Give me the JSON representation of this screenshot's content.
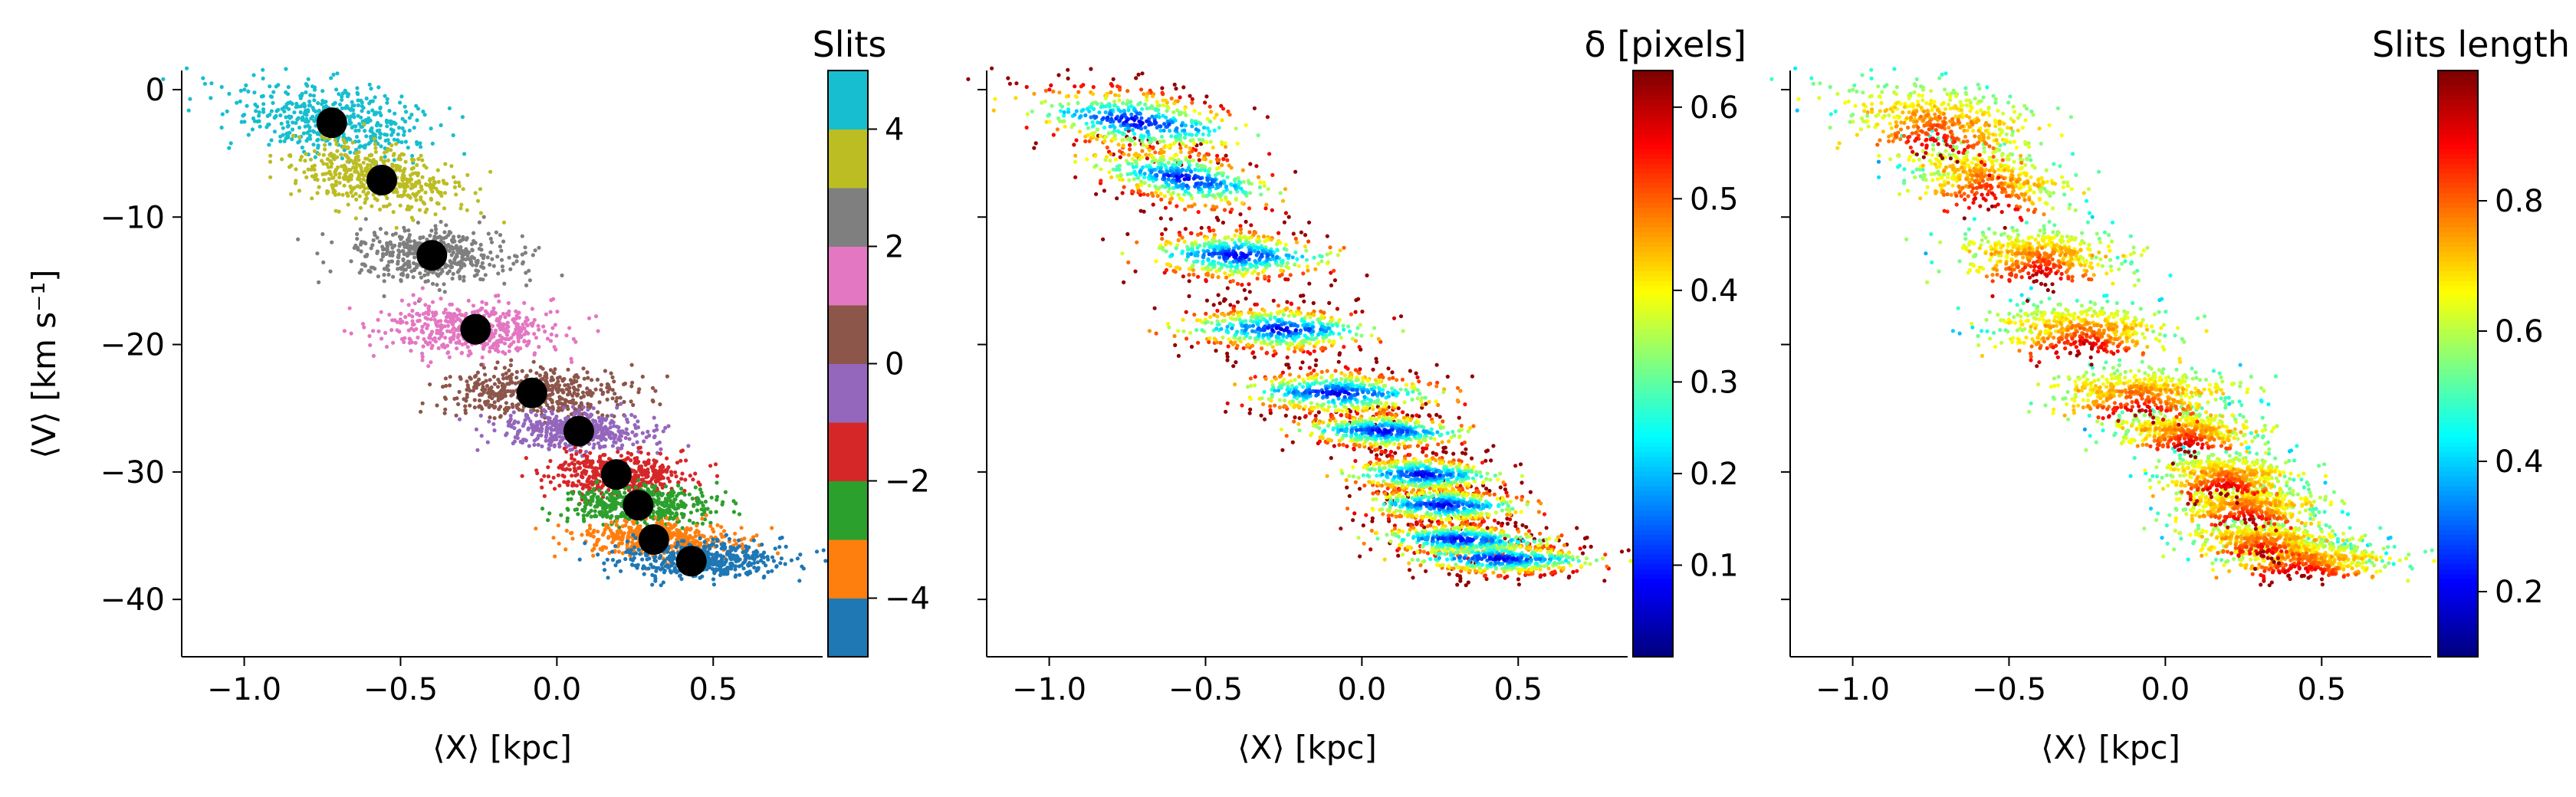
{
  "chart_data": [
    {
      "type": "scatter",
      "title": "",
      "xlabel": "⟨X⟩ [kpc]",
      "ylabel": "⟨V⟩ [km s⁻¹]",
      "xlim": [
        -1.2,
        0.85
      ],
      "ylim": [
        -44.5,
        1.5
      ],
      "x_ticks": [
        -1.0,
        -0.5,
        0.0,
        0.5
      ],
      "x_tick_labels": [
        "−1.0",
        "−0.5",
        "0.0",
        "0.5"
      ],
      "y_ticks": [
        0,
        -10,
        -20,
        -30,
        -40
      ],
      "y_tick_labels": [
        "0",
        "−10",
        "−20",
        "−30",
        "−40"
      ],
      "colorbar": {
        "label": "Slits",
        "type": "discrete",
        "range": [
          -5,
          5
        ],
        "ticks": [
          4,
          2,
          0,
          -2,
          -4
        ],
        "tick_labels": [
          "4",
          "2",
          "0",
          "−2",
          "−4"
        ],
        "colors": [
          "#1f77b4",
          "#ff7f0e",
          "#2ca02c",
          "#d62728",
          "#9467bd",
          "#8c564b",
          "#e377c2",
          "#7f7f7f",
          "#bcbd22",
          "#17becf"
        ]
      },
      "series": [
        {
          "slit": 4,
          "mean": [
            -0.72,
            -2.6
          ],
          "x_range": [
            -1.1,
            -0.35
          ],
          "center_v": -2.5,
          "v_width": 3.5,
          "tilt": 3.0
        },
        {
          "slit": 3,
          "mean": [
            -0.56,
            -7.1
          ],
          "x_range": [
            -0.85,
            -0.3
          ],
          "center_v": -7.0,
          "v_width": 3.2,
          "tilt": 4.0
        },
        {
          "slit": 2,
          "mean": [
            -0.4,
            -13.0
          ],
          "x_range": [
            -0.7,
            -0.1
          ],
          "center_v": -13.0,
          "v_width": 2.8,
          "tilt": 0.5
        },
        {
          "slit": 1,
          "mean": [
            -0.26,
            -18.8
          ],
          "x_range": [
            -0.6,
            0.05
          ],
          "center_v": -18.8,
          "v_width": 2.5,
          "tilt": 0.5
        },
        {
          "slit": 0,
          "mean": [
            -0.08,
            -23.8
          ],
          "x_range": [
            -0.4,
            0.25
          ],
          "center_v": -23.8,
          "v_width": 2.5,
          "tilt": 0.5
        },
        {
          "slit": -1,
          "mean": [
            0.07,
            -26.8
          ],
          "x_range": [
            -0.2,
            0.32
          ],
          "center_v": -26.8,
          "v_width": 2.0,
          "tilt": 0.5
        },
        {
          "slit": -2,
          "mean": [
            0.19,
            -30.2
          ],
          "x_range": [
            -0.05,
            0.45
          ],
          "center_v": -30.2,
          "v_width": 2.0,
          "tilt": 0.5
        },
        {
          "slit": -3,
          "mean": [
            0.26,
            -32.6
          ],
          "x_range": [
            0.0,
            0.52
          ],
          "center_v": -32.6,
          "v_width": 2.0,
          "tilt": 0.5
        },
        {
          "slit": -4,
          "mean": [
            0.31,
            -35.3
          ],
          "x_range": [
            0.05,
            0.6
          ],
          "center_v": -35.3,
          "v_width": 1.8,
          "tilt": 0.5
        },
        {
          "slit": -5,
          "mean": [
            0.43,
            -37.0
          ],
          "x_range": [
            0.15,
            0.78
          ],
          "center_v": -36.8,
          "v_width": 1.8,
          "tilt": 0.5
        }
      ]
    },
    {
      "type": "scatter",
      "title": "",
      "xlabel": "⟨X⟩ [kpc]",
      "xlim": [
        -1.2,
        0.85
      ],
      "ylim": [
        -44.5,
        1.5
      ],
      "x_ticks": [
        -1.0,
        -0.5,
        0.0,
        0.5
      ],
      "x_tick_labels": [
        "−1.0",
        "−0.5",
        "0.0",
        "0.5"
      ],
      "y_ticks": [
        0,
        -10,
        -20,
        -30,
        -40
      ],
      "colorbar": {
        "label": "δ [pixels]",
        "type": "continuous",
        "colormap": "jet",
        "range": [
          0.0,
          0.64
        ],
        "ticks": [
          0.6,
          0.5,
          0.4,
          0.3,
          0.2,
          0.1
        ],
        "tick_labels": [
          "0.6",
          "0.5",
          "0.4",
          "0.3",
          "0.2",
          "0.1"
        ]
      },
      "color_trend": "low δ (blue) near each slit's central band, high δ (red) toward the edges"
    },
    {
      "type": "scatter",
      "title": "",
      "xlabel": "⟨X⟩ [kpc]",
      "xlim": [
        -1.2,
        0.85
      ],
      "ylim": [
        -44.5,
        1.5
      ],
      "x_ticks": [
        -1.0,
        -0.5,
        0.0,
        0.5
      ],
      "x_tick_labels": [
        "−1.0",
        "−0.5",
        "0.0",
        "0.5"
      ],
      "y_ticks": [
        0,
        -10,
        -20,
        -30,
        -40
      ],
      "colorbar": {
        "label": "Slits length",
        "type": "continuous",
        "colormap": "jet",
        "range": [
          0.1,
          1.0
        ],
        "ticks": [
          0.8,
          0.6,
          0.4,
          0.2
        ],
        "tick_labels": [
          "0.8",
          "0.6",
          "0.4",
          "0.2"
        ]
      },
      "color_trend": "high slit length (dark red) on the upper part of each band, lower values (yellow to blue) toward the bottom"
    }
  ]
}
